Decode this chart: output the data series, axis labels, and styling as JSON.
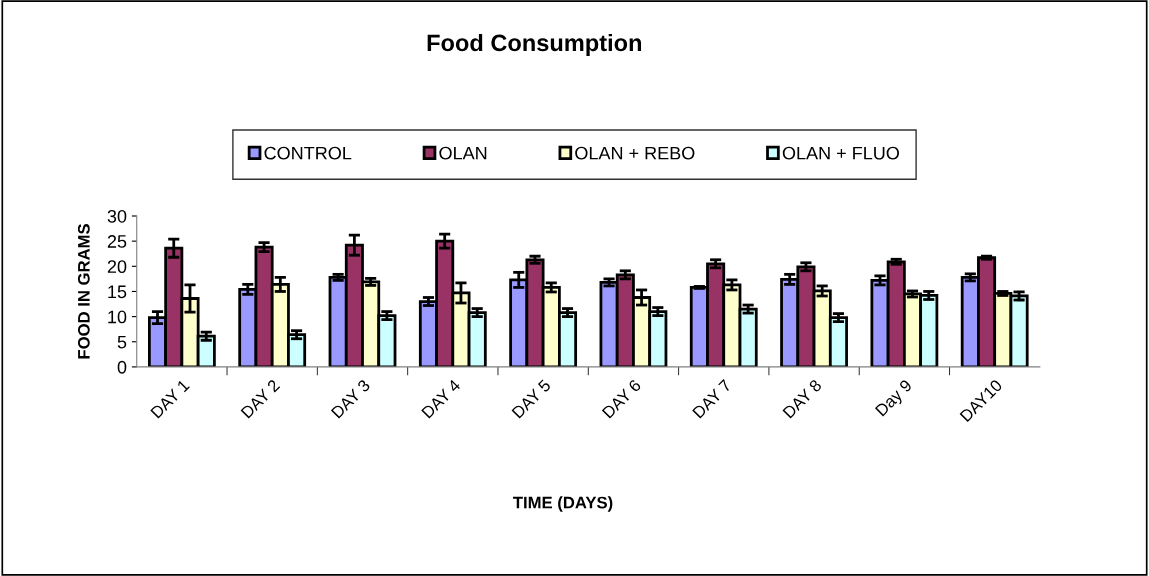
{
  "chart_data": {
    "type": "bar",
    "title": "Food Consumption",
    "xlabel": "TIME (DAYS)",
    "ylabel": "FOOD IN GRAMS",
    "categories": [
      "DAY 1",
      "DAY 2",
      "DAY 3",
      "DAY 4",
      "DAY 5",
      "DAY 6",
      "DAY 7",
      "DAY 8",
      "Day 9",
      "DAY10"
    ],
    "series": [
      {
        "name": "CONTROL",
        "color": "#9999ff",
        "values": [
          9.8,
          15.4,
          17.8,
          13,
          17.3,
          16.8,
          15.8,
          17.4,
          17.2,
          17.8
        ],
        "errors": [
          1.2,
          1,
          0.6,
          0.8,
          1.5,
          0.7,
          0.2,
          1,
          0.9,
          0.7
        ]
      },
      {
        "name": "OLAN",
        "color": "#993366",
        "values": [
          23.6,
          23.8,
          24.2,
          25,
          21.3,
          18.3,
          20.5,
          19.9,
          20.9,
          21.7
        ],
        "errors": [
          1.8,
          0.9,
          2,
          1.4,
          0.7,
          0.8,
          0.8,
          0.8,
          0.5,
          0.3
        ]
      },
      {
        "name": "OLAN + REBO",
        "color": "#ffffcc",
        "values": [
          13.6,
          16.4,
          16.9,
          14.7,
          15.8,
          13.8,
          16.3,
          15.1,
          14.5,
          14.6
        ],
        "errors": [
          2.7,
          1.4,
          0.7,
          2,
          0.9,
          1.5,
          1,
          1,
          0.6,
          0.4
        ]
      },
      {
        "name": "OLAN + FLUO",
        "color": "#ccffff",
        "values": [
          6.1,
          6.4,
          10.2,
          10.8,
          10.8,
          11,
          11.5,
          9.8,
          14.2,
          14.1
        ],
        "errors": [
          0.8,
          0.8,
          0.8,
          0.8,
          0.8,
          0.8,
          0.8,
          0.8,
          0.8,
          0.8
        ]
      }
    ],
    "ylim": [
      0,
      30
    ],
    "yticks": [
      0,
      5,
      10,
      15,
      20,
      25,
      30
    ],
    "grid": false,
    "legend": "top"
  }
}
